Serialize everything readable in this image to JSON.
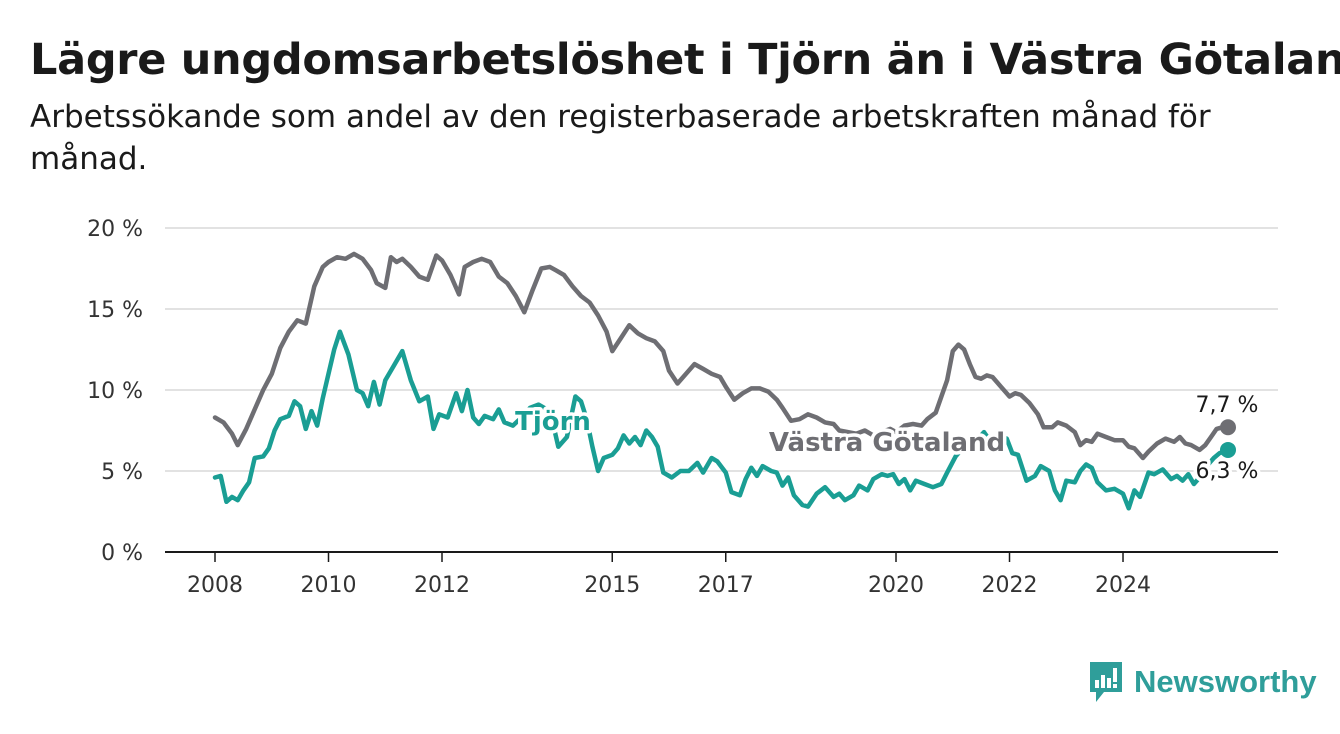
{
  "title": "Lägre ungdomsarbetslöshet i Tjörn än i Västra Götaland",
  "subtitle": "Arbetssökande som andel av den registerbaserade arbetskraften månad för månad.",
  "brand": {
    "name": "Newsworthy"
  },
  "colors": {
    "vastra_gotaland": "#6e6e73",
    "tjorn": "#1a9e94",
    "brand": "#2f9e9a"
  },
  "chart_data": {
    "type": "line",
    "title": "Lägre ungdomsarbetslöshet i Tjörn än i Västra Götaland",
    "subtitle": "Arbetssökande som andel av den registerbaserade arbetskraften månad för månad.",
    "xlabel": "",
    "ylabel": "",
    "ylim": [
      0,
      20
    ],
    "yticks": [
      0,
      5,
      10,
      15,
      20
    ],
    "ytick_labels": [
      "0 %",
      "5 %",
      "10 %",
      "15 %",
      "20 %"
    ],
    "xticks": [
      2008,
      2010,
      2012,
      2015,
      2017,
      2020,
      2022,
      2024
    ],
    "xtick_labels": [
      "2008",
      "2010",
      "2012",
      "2015",
      "2017",
      "2020",
      "2022",
      "2024"
    ],
    "grid": true,
    "legend": "inline labels",
    "series": [
      {
        "name": "Västra Götaland",
        "color": "#6e6e73",
        "end_label": "7,7 %",
        "points": [
          [
            2008.0,
            8.3
          ],
          [
            2008.15,
            8.0
          ],
          [
            2008.3,
            7.3
          ],
          [
            2008.4,
            6.6
          ],
          [
            2008.55,
            7.6
          ],
          [
            2008.7,
            8.8
          ],
          [
            2008.85,
            10.0
          ],
          [
            2009.0,
            11.0
          ],
          [
            2009.15,
            12.6
          ],
          [
            2009.3,
            13.6
          ],
          [
            2009.45,
            14.3
          ],
          [
            2009.6,
            14.1
          ],
          [
            2009.75,
            16.4
          ],
          [
            2009.9,
            17.6
          ],
          [
            2010.0,
            17.9
          ],
          [
            2010.15,
            18.2
          ],
          [
            2010.3,
            18.1
          ],
          [
            2010.45,
            18.4
          ],
          [
            2010.6,
            18.1
          ],
          [
            2010.75,
            17.4
          ],
          [
            2010.85,
            16.6
          ],
          [
            2011.0,
            16.3
          ],
          [
            2011.1,
            18.2
          ],
          [
            2011.2,
            17.9
          ],
          [
            2011.3,
            18.1
          ],
          [
            2011.45,
            17.6
          ],
          [
            2011.6,
            17.0
          ],
          [
            2011.75,
            16.8
          ],
          [
            2011.9,
            18.3
          ],
          [
            2012.0,
            18.0
          ],
          [
            2012.15,
            17.1
          ],
          [
            2012.3,
            15.9
          ],
          [
            2012.4,
            17.6
          ],
          [
            2012.55,
            17.9
          ],
          [
            2012.7,
            18.1
          ],
          [
            2012.85,
            17.9
          ],
          [
            2013.0,
            17.0
          ],
          [
            2013.15,
            16.6
          ],
          [
            2013.3,
            15.8
          ],
          [
            2013.45,
            14.8
          ],
          [
            2013.6,
            16.2
          ],
          [
            2013.75,
            17.5
          ],
          [
            2013.9,
            17.6
          ],
          [
            2014.0,
            17.4
          ],
          [
            2014.15,
            17.1
          ],
          [
            2014.3,
            16.4
          ],
          [
            2014.45,
            15.8
          ],
          [
            2014.6,
            15.4
          ],
          [
            2014.75,
            14.6
          ],
          [
            2014.9,
            13.6
          ],
          [
            2015.0,
            12.4
          ],
          [
            2015.15,
            13.2
          ],
          [
            2015.3,
            14.0
          ],
          [
            2015.45,
            13.5
          ],
          [
            2015.6,
            13.2
          ],
          [
            2015.75,
            13.0
          ],
          [
            2015.9,
            12.4
          ],
          [
            2016.0,
            11.2
          ],
          [
            2016.15,
            10.4
          ],
          [
            2016.3,
            11.0
          ],
          [
            2016.45,
            11.6
          ],
          [
            2016.6,
            11.3
          ],
          [
            2016.75,
            11.0
          ],
          [
            2016.9,
            10.8
          ],
          [
            2017.0,
            10.2
          ],
          [
            2017.15,
            9.4
          ],
          [
            2017.3,
            9.8
          ],
          [
            2017.45,
            10.1
          ],
          [
            2017.6,
            10.1
          ],
          [
            2017.75,
            9.9
          ],
          [
            2017.9,
            9.4
          ],
          [
            2018.0,
            8.9
          ],
          [
            2018.15,
            8.1
          ],
          [
            2018.3,
            8.2
          ],
          [
            2018.45,
            8.5
          ],
          [
            2018.6,
            8.3
          ],
          [
            2018.75,
            8.0
          ],
          [
            2018.9,
            7.9
          ],
          [
            2019.0,
            7.5
          ],
          [
            2019.15,
            7.4
          ],
          [
            2019.3,
            7.3
          ],
          [
            2019.45,
            7.5
          ],
          [
            2019.6,
            7.2
          ],
          [
            2019.75,
            7.4
          ],
          [
            2019.9,
            7.6
          ],
          [
            2020.0,
            7.4
          ],
          [
            2020.15,
            7.8
          ],
          [
            2020.3,
            7.9
          ],
          [
            2020.45,
            7.8
          ],
          [
            2020.55,
            8.2
          ],
          [
            2020.7,
            8.6
          ],
          [
            2020.8,
            9.6
          ],
          [
            2020.9,
            10.6
          ],
          [
            2021.0,
            12.4
          ],
          [
            2021.1,
            12.8
          ],
          [
            2021.2,
            12.5
          ],
          [
            2021.3,
            11.6
          ],
          [
            2021.4,
            10.8
          ],
          [
            2021.5,
            10.7
          ],
          [
            2021.6,
            10.9
          ],
          [
            2021.7,
            10.8
          ],
          [
            2021.85,
            10.2
          ],
          [
            2022.0,
            9.6
          ],
          [
            2022.1,
            9.8
          ],
          [
            2022.2,
            9.7
          ],
          [
            2022.35,
            9.2
          ],
          [
            2022.5,
            8.5
          ],
          [
            2022.6,
            7.7
          ],
          [
            2022.75,
            7.7
          ],
          [
            2022.85,
            8.0
          ],
          [
            2023.0,
            7.8
          ],
          [
            2023.15,
            7.4
          ],
          [
            2023.25,
            6.6
          ],
          [
            2023.35,
            6.9
          ],
          [
            2023.45,
            6.8
          ],
          [
            2023.55,
            7.3
          ],
          [
            2023.7,
            7.1
          ],
          [
            2023.85,
            6.9
          ],
          [
            2024.0,
            6.9
          ],
          [
            2024.1,
            6.5
          ],
          [
            2024.2,
            6.4
          ],
          [
            2024.35,
            5.8
          ],
          [
            2024.45,
            6.2
          ],
          [
            2024.6,
            6.7
          ],
          [
            2024.75,
            7.0
          ],
          [
            2024.9,
            6.8
          ],
          [
            2025.0,
            7.1
          ],
          [
            2025.1,
            6.7
          ],
          [
            2025.2,
            6.6
          ],
          [
            2025.35,
            6.3
          ],
          [
            2025.45,
            6.6
          ],
          [
            2025.55,
            7.1
          ],
          [
            2025.65,
            7.6
          ],
          [
            2025.75,
            7.7
          ],
          [
            2025.85,
            7.7
          ]
        ]
      },
      {
        "name": "Tjörn",
        "color": "#1a9e94",
        "end_label": "6,3 %",
        "points": [
          [
            2008.0,
            4.6
          ],
          [
            2008.1,
            4.7
          ],
          [
            2008.2,
            3.1
          ],
          [
            2008.3,
            3.4
          ],
          [
            2008.4,
            3.2
          ],
          [
            2008.5,
            3.8
          ],
          [
            2008.6,
            4.3
          ],
          [
            2008.7,
            5.8
          ],
          [
            2008.85,
            5.9
          ],
          [
            2008.95,
            6.4
          ],
          [
            2009.05,
            7.5
          ],
          [
            2009.15,
            8.2
          ],
          [
            2009.3,
            8.4
          ],
          [
            2009.4,
            9.3
          ],
          [
            2009.5,
            9.0
          ],
          [
            2009.6,
            7.6
          ],
          [
            2009.7,
            8.7
          ],
          [
            2009.8,
            7.8
          ],
          [
            2009.9,
            9.5
          ],
          [
            2010.0,
            11.0
          ],
          [
            2010.1,
            12.5
          ],
          [
            2010.2,
            13.6
          ],
          [
            2010.35,
            12.2
          ],
          [
            2010.5,
            10.0
          ],
          [
            2010.6,
            9.8
          ],
          [
            2010.7,
            9.0
          ],
          [
            2010.8,
            10.5
          ],
          [
            2010.9,
            9.1
          ],
          [
            2011.0,
            10.6
          ],
          [
            2011.15,
            11.5
          ],
          [
            2011.3,
            12.4
          ],
          [
            2011.45,
            10.6
          ],
          [
            2011.6,
            9.3
          ],
          [
            2011.75,
            9.6
          ],
          [
            2011.85,
            7.6
          ],
          [
            2011.95,
            8.5
          ],
          [
            2012.1,
            8.3
          ],
          [
            2012.25,
            9.8
          ],
          [
            2012.35,
            8.7
          ],
          [
            2012.45,
            10.0
          ],
          [
            2012.55,
            8.3
          ],
          [
            2012.65,
            7.9
          ],
          [
            2012.75,
            8.4
          ],
          [
            2012.9,
            8.2
          ],
          [
            2013.0,
            8.8
          ],
          [
            2013.1,
            8.0
          ],
          [
            2013.25,
            7.8
          ],
          [
            2013.4,
            8.3
          ],
          [
            2013.55,
            8.9
          ],
          [
            2013.7,
            9.1
          ],
          [
            2013.85,
            8.8
          ],
          [
            2013.95,
            8.0
          ],
          [
            2014.05,
            6.5
          ],
          [
            2014.2,
            7.1
          ],
          [
            2014.35,
            9.6
          ],
          [
            2014.45,
            9.3
          ],
          [
            2014.55,
            8.2
          ],
          [
            2014.65,
            6.5
          ],
          [
            2014.75,
            5.0
          ],
          [
            2014.85,
            5.8
          ],
          [
            2015.0,
            6.0
          ],
          [
            2015.1,
            6.4
          ],
          [
            2015.2,
            7.2
          ],
          [
            2015.3,
            6.7
          ],
          [
            2015.4,
            7.1
          ],
          [
            2015.5,
            6.6
          ],
          [
            2015.6,
            7.5
          ],
          [
            2015.7,
            7.1
          ],
          [
            2015.8,
            6.5
          ],
          [
            2015.9,
            4.9
          ],
          [
            2016.05,
            4.6
          ],
          [
            2016.2,
            5.0
          ],
          [
            2016.35,
            5.0
          ],
          [
            2016.5,
            5.5
          ],
          [
            2016.6,
            4.9
          ],
          [
            2016.75,
            5.8
          ],
          [
            2016.85,
            5.6
          ],
          [
            2017.0,
            4.9
          ],
          [
            2017.1,
            3.7
          ],
          [
            2017.25,
            3.5
          ],
          [
            2017.35,
            4.5
          ],
          [
            2017.45,
            5.2
          ],
          [
            2017.55,
            4.7
          ],
          [
            2017.65,
            5.3
          ],
          [
            2017.8,
            5.0
          ],
          [
            2017.9,
            4.9
          ],
          [
            2018.0,
            4.1
          ],
          [
            2018.1,
            4.6
          ],
          [
            2018.2,
            3.5
          ],
          [
            2018.35,
            2.9
          ],
          [
            2018.45,
            2.8
          ],
          [
            2018.6,
            3.6
          ],
          [
            2018.75,
            4.0
          ],
          [
            2018.9,
            3.4
          ],
          [
            2019.0,
            3.6
          ],
          [
            2019.1,
            3.2
          ],
          [
            2019.25,
            3.5
          ],
          [
            2019.35,
            4.1
          ],
          [
            2019.5,
            3.8
          ],
          [
            2019.6,
            4.5
          ],
          [
            2019.75,
            4.8
          ],
          [
            2019.85,
            4.7
          ],
          [
            2019.95,
            4.8
          ],
          [
            2020.05,
            4.2
          ],
          [
            2020.15,
            4.5
          ],
          [
            2020.25,
            3.8
          ],
          [
            2020.35,
            4.4
          ],
          [
            2020.5,
            4.2
          ],
          [
            2020.65,
            4.0
          ],
          [
            2020.8,
            4.2
          ],
          [
            2020.9,
            4.9
          ],
          [
            2021.05,
            5.9
          ],
          [
            2021.15,
            6.3
          ],
          [
            2021.3,
            6.6
          ],
          [
            2021.4,
            6.8
          ],
          [
            2021.55,
            7.4
          ],
          [
            2021.65,
            6.9
          ],
          [
            2021.8,
            7.2
          ],
          [
            2021.95,
            7.0
          ],
          [
            2022.05,
            6.1
          ],
          [
            2022.15,
            6.0
          ],
          [
            2022.3,
            4.4
          ],
          [
            2022.45,
            4.7
          ],
          [
            2022.55,
            5.3
          ],
          [
            2022.7,
            5.0
          ],
          [
            2022.8,
            3.8
          ],
          [
            2022.9,
            3.2
          ],
          [
            2023.0,
            4.4
          ],
          [
            2023.15,
            4.3
          ],
          [
            2023.25,
            5.0
          ],
          [
            2023.35,
            5.4
          ],
          [
            2023.45,
            5.2
          ],
          [
            2023.55,
            4.3
          ],
          [
            2023.7,
            3.8
          ],
          [
            2023.85,
            3.9
          ],
          [
            2024.0,
            3.6
          ],
          [
            2024.1,
            2.7
          ],
          [
            2024.2,
            3.8
          ],
          [
            2024.3,
            3.4
          ],
          [
            2024.45,
            4.9
          ],
          [
            2024.55,
            4.8
          ],
          [
            2024.7,
            5.1
          ],
          [
            2024.85,
            4.5
          ],
          [
            2024.95,
            4.7
          ],
          [
            2025.05,
            4.4
          ],
          [
            2025.15,
            4.8
          ],
          [
            2025.25,
            4.2
          ],
          [
            2025.35,
            4.6
          ],
          [
            2025.5,
            5.4
          ],
          [
            2025.6,
            5.8
          ],
          [
            2025.7,
            6.1
          ],
          [
            2025.85,
            6.3
          ]
        ]
      }
    ]
  }
}
